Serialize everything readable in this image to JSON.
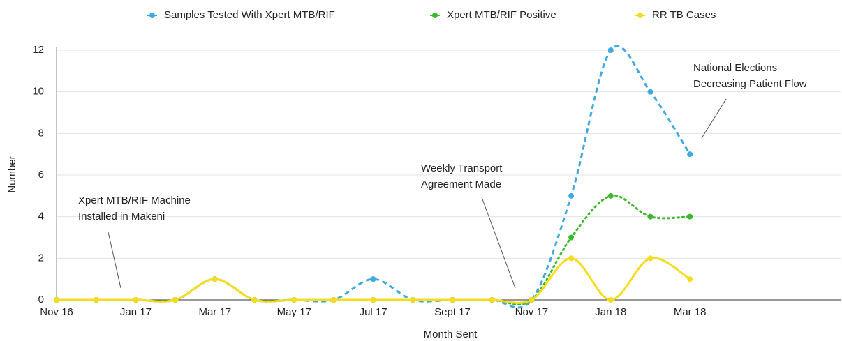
{
  "chart_data": {
    "type": "line",
    "categories": [
      "Nov 16",
      null,
      "Jan 17",
      null,
      "Mar 17",
      null,
      "May 17",
      null,
      "Jul 17",
      null,
      "Sept 17",
      null,
      "Nov 17",
      null,
      "Jan 18",
      null,
      "Mar 18"
    ],
    "series": [
      {
        "name": "Samples Tested With Xpert MTB/RIF",
        "color": "#3fa9e0",
        "dash": "dashed",
        "values": [
          0,
          0,
          0,
          0,
          1,
          0,
          0,
          0,
          1,
          0,
          0,
          0,
          0,
          5,
          12,
          10,
          7
        ]
      },
      {
        "name": "Xpert MTB/RIF Positive",
        "color": "#3cb82c",
        "dash": "dotted",
        "values": [
          0,
          0,
          0,
          0,
          1,
          0,
          0,
          0,
          0,
          0,
          0,
          0,
          0,
          3,
          5,
          4,
          4
        ]
      },
      {
        "name": "RR TB Cases",
        "color": "#f5dc1e",
        "dash": "solid",
        "values": [
          0,
          0,
          0,
          0,
          1,
          0,
          0,
          0,
          0,
          0,
          0,
          0,
          0,
          2,
          0,
          2,
          1
        ]
      }
    ],
    "ylim": [
      0,
      12
    ],
    "yticks": [
      0,
      2,
      4,
      6,
      8,
      10,
      12
    ],
    "grid": true,
    "legend": "top",
    "xlabel": "Month Sent",
    "ylabel": "Number",
    "annotations": [
      {
        "lines": [
          "Xpert MTB/RIF Machine",
          "Installed in Makeni"
        ]
      },
      {
        "lines": [
          "Weekly Transport",
          "Agreement Made"
        ]
      },
      {
        "lines": [
          "National Elections",
          "Decreasing Patient Flow"
        ]
      }
    ]
  }
}
